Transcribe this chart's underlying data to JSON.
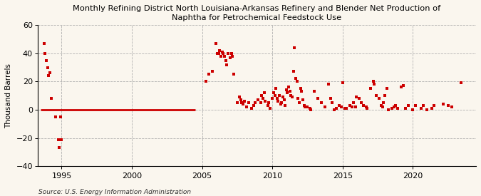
{
  "title_line1": "Monthly Refining District North Louisiana-Arkansas Refinery and Blender Net Production of",
  "title_line2": "Naphtha for Petrochemical Feedstock Use",
  "ylabel": "Thousand Barrels",
  "source": "Source: U.S. Energy Information Administration",
  "background_color": "#faf6ee",
  "plot_bg_color": "#faf6ee",
  "marker_color": "#cc0000",
  "line_color": "#cc0000",
  "ylim": [
    -40,
    60
  ],
  "yticks": [
    -40,
    -20,
    0,
    20,
    40,
    60
  ],
  "xlim": [
    1993.3,
    2024.5
  ],
  "xticks": [
    1995,
    2000,
    2005,
    2010,
    2015,
    2020
  ],
  "zero_line_start": 1993.5,
  "zero_line_end": 2004.5,
  "scatter_x": [
    1993.75,
    1993.83,
    1993.92,
    1994.0,
    1994.08,
    1994.17,
    1994.25,
    1994.58,
    1994.75,
    1994.83,
    1994.92,
    1995.0,
    2005.25,
    2005.5,
    2005.75,
    2006.0,
    2006.08,
    2006.17,
    2006.25,
    2006.33,
    2006.42,
    2006.5,
    2006.58,
    2006.67,
    2006.75,
    2006.83,
    2007.0,
    2007.08,
    2007.17,
    2007.25,
    2007.5,
    2007.67,
    2007.75,
    2007.83,
    2007.92,
    2008.0,
    2008.17,
    2008.33,
    2008.5,
    2008.67,
    2008.75,
    2009.0,
    2009.17,
    2009.25,
    2009.33,
    2009.42,
    2009.5,
    2009.67,
    2009.75,
    2009.83,
    2010.0,
    2010.08,
    2010.17,
    2010.25,
    2010.33,
    2010.42,
    2010.5,
    2010.58,
    2010.67,
    2010.75,
    2010.83,
    2010.92,
    2011.0,
    2011.08,
    2011.17,
    2011.25,
    2011.33,
    2011.42,
    2011.5,
    2011.58,
    2011.67,
    2011.75,
    2011.83,
    2011.92,
    2012.0,
    2012.08,
    2012.17,
    2012.25,
    2012.33,
    2012.5,
    2012.67,
    2012.75,
    2013.0,
    2013.25,
    2013.5,
    2013.75,
    2014.0,
    2014.17,
    2014.25,
    2014.42,
    2014.58,
    2014.75,
    2014.92,
    2015.0,
    2015.17,
    2015.25,
    2015.5,
    2015.67,
    2015.75,
    2015.92,
    2016.0,
    2016.17,
    2016.33,
    2016.5,
    2016.67,
    2016.75,
    2017.0,
    2017.17,
    2017.25,
    2017.42,
    2017.58,
    2017.75,
    2017.83,
    2017.92,
    2018.0,
    2018.17,
    2018.25,
    2018.5,
    2018.67,
    2018.75,
    2018.92,
    2019.17,
    2019.33,
    2019.5,
    2019.67,
    2020.0,
    2020.17,
    2020.58,
    2020.75,
    2021.0,
    2021.33,
    2021.5,
    2022.17,
    2022.5,
    2022.75,
    2023.42
  ],
  "scatter_y": [
    47,
    40,
    35,
    30,
    24,
    26,
    8,
    -5,
    -21,
    -27,
    -5,
    -21,
    20,
    25,
    27,
    47,
    40,
    40,
    42,
    38,
    41,
    40,
    38,
    35,
    32,
    40,
    37,
    40,
    38,
    25,
    5,
    9,
    7,
    5,
    4,
    6,
    2,
    5,
    1,
    3,
    5,
    7,
    5,
    10,
    8,
    12,
    6,
    3,
    5,
    1,
    8,
    12,
    10,
    15,
    8,
    6,
    10,
    4,
    5,
    9,
    7,
    3,
    14,
    12,
    16,
    13,
    10,
    9,
    27,
    44,
    22,
    20,
    8,
    5,
    15,
    13,
    7,
    3,
    2,
    2,
    1,
    0,
    13,
    8,
    5,
    2,
    18,
    8,
    5,
    0,
    1,
    3,
    2,
    19,
    1,
    1,
    3,
    2,
    5,
    2,
    9,
    8,
    5,
    3,
    2,
    1,
    15,
    20,
    18,
    10,
    8,
    3,
    2,
    5,
    10,
    15,
    0,
    1,
    2,
    3,
    1,
    16,
    17,
    1,
    3,
    0,
    3,
    1,
    3,
    0,
    1,
    3,
    4,
    3,
    2,
    19
  ]
}
